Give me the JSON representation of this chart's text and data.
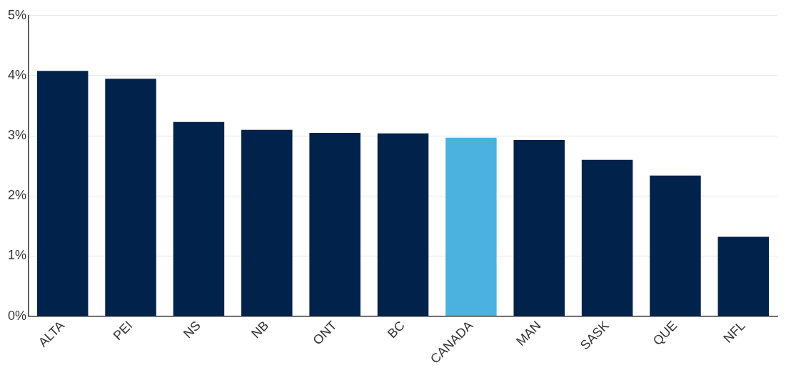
{
  "chart_data": {
    "type": "bar",
    "categories": [
      "ALTA",
      "PEI",
      "NS",
      "NB",
      "ONT",
      "BC",
      "CANADA",
      "MAN",
      "SASK",
      "QUE",
      "NFL"
    ],
    "values": [
      4.08,
      3.95,
      3.23,
      3.1,
      3.05,
      3.04,
      2.97,
      2.93,
      2.6,
      2.34,
      1.32
    ],
    "colors": [
      "#00224b",
      "#00224b",
      "#00224b",
      "#00224b",
      "#00224b",
      "#00224b",
      "#4bb2df",
      "#00224b",
      "#00224b",
      "#00224b",
      "#00224b"
    ],
    "ylim": [
      0,
      5
    ],
    "yticks": [
      {
        "value": 0,
        "label": "0%"
      },
      {
        "value": 1,
        "label": "1%"
      },
      {
        "value": 2,
        "label": "2%"
      },
      {
        "value": 3,
        "label": "3%"
      },
      {
        "value": 4,
        "label": "4%"
      },
      {
        "value": 5,
        "label": "5%"
      }
    ],
    "grid": "y",
    "legend": false
  }
}
